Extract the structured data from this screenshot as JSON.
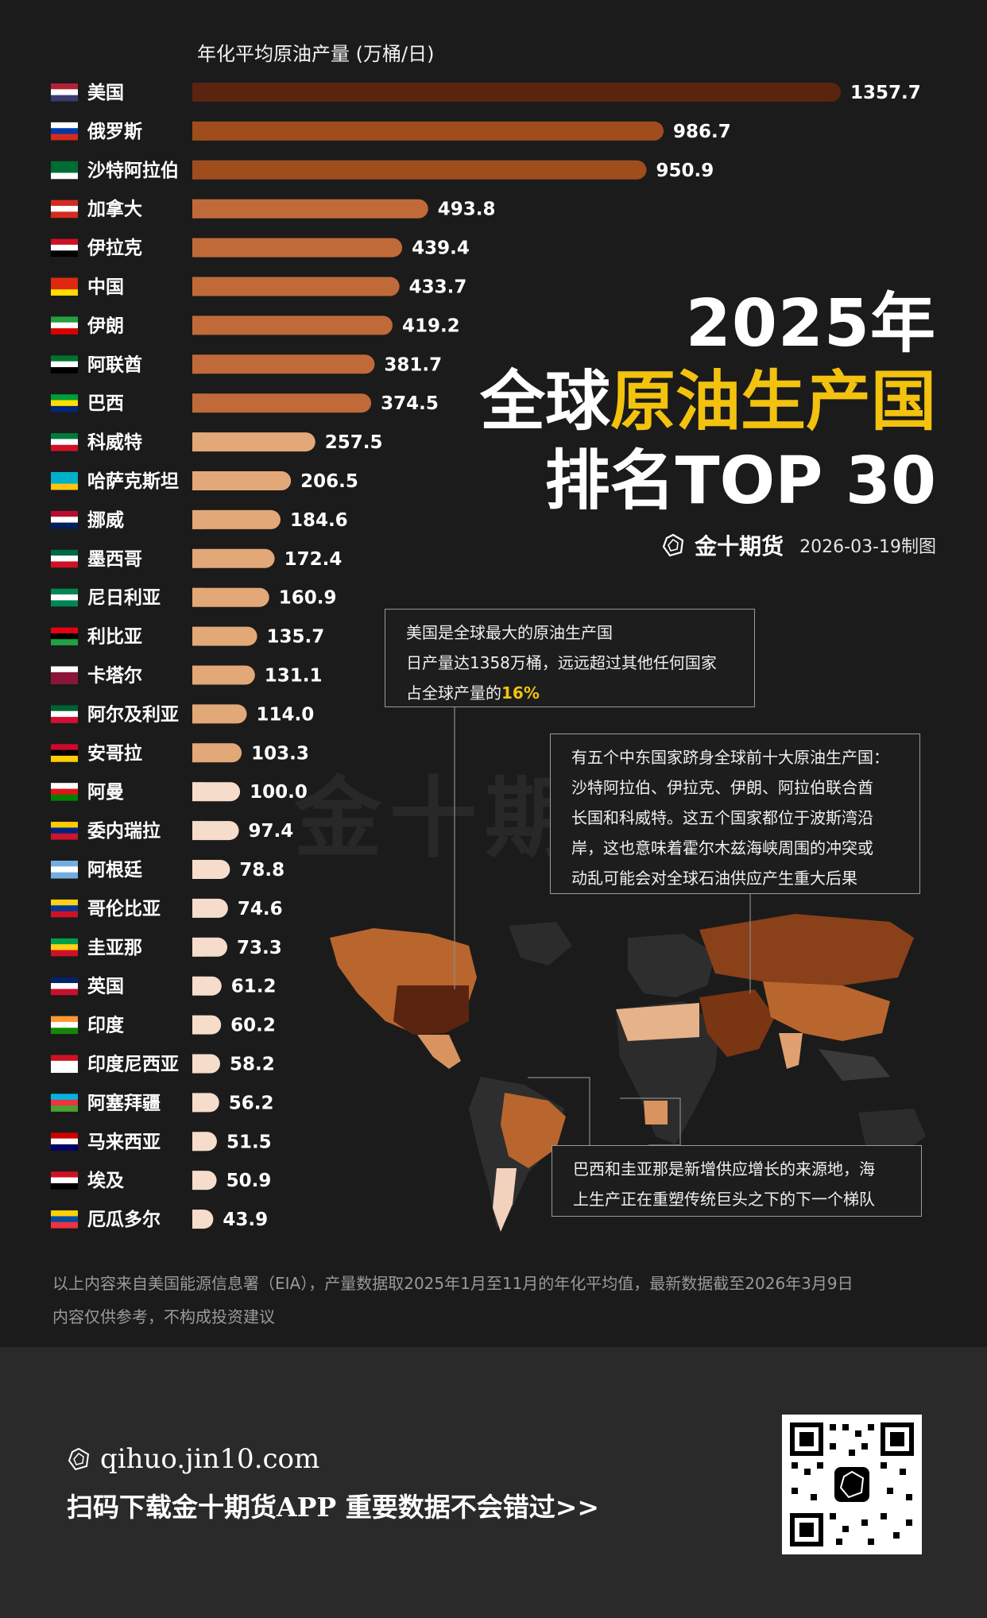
{
  "unit_label": "年化平均原油产量 (万桶/日)",
  "title": {
    "year": "2025年",
    "prefix": "全球",
    "highlight": "原油生产国",
    "line3": "排名TOP 30"
  },
  "brand": {
    "name": "金十期货",
    "date": "2026-03-19制图"
  },
  "watermark": "金十期货",
  "notes": {
    "usa": [
      "美国是全球最大的原油生产国",
      "日产量达1358万桶，远远超过其他任何国家",
      "占全球产量的",
      "16%"
    ],
    "mideast": [
      "有五个中东国家跻身全球前十大原油生产国：",
      "沙特阿拉伯、伊拉克、伊朗、阿拉伯联合酋",
      "长国和科威特。这五个国家都位于波斯湾沿",
      "岸，这也意味着霍尔木兹海峡周围的冲突或",
      "动乱可能会对全球石油供应产生重大后果"
    ],
    "brazil": [
      "巴西和圭亚那是新增供应增长的来源地，海",
      "上生产正在重塑传统巨头之下的下一个梯队"
    ]
  },
  "source": [
    "以上内容来自美国能源信息署（EIA），产量数据取2025年1月至11月的年化平均值，最新数据截至2026年3月9日",
    "内容仅供参考，不构成投资建议"
  ],
  "footer": {
    "url": "qihuo.jin10.com",
    "slogan": "扫码下载金十期货APP 重要数据不会错过>>"
  },
  "colors": {
    "top": "#5a2410",
    "mid": "#c06a3a",
    "low": "#e3a878",
    "lowest": "#f6dccb",
    "accent": "#f3c20f"
  },
  "chart_data": {
    "type": "bar",
    "orientation": "horizontal",
    "categories": [
      "美国",
      "俄罗斯",
      "沙特阿拉伯",
      "加拿大",
      "伊拉克",
      "中国",
      "伊朗",
      "阿联酋",
      "巴西",
      "科威特",
      "哈萨克斯坦",
      "挪威",
      "墨西哥",
      "尼日利亚",
      "利比亚",
      "卡塔尔",
      "阿尔及利亚",
      "安哥拉",
      "阿曼",
      "委内瑞拉",
      "阿根廷",
      "哥伦比亚",
      "圭亚那",
      "英国",
      "印度",
      "印度尼西亚",
      "阿塞拜疆",
      "马来西亚",
      "埃及",
      "厄瓜多尔"
    ],
    "values": [
      1357.7,
      986.7,
      950.9,
      493.8,
      439.4,
      433.7,
      419.2,
      381.7,
      374.5,
      257.5,
      206.5,
      184.6,
      172.4,
      160.9,
      135.7,
      131.1,
      114.0,
      103.3,
      100.0,
      97.4,
      78.8,
      74.6,
      73.3,
      61.2,
      60.2,
      58.2,
      56.2,
      51.5,
      50.9,
      43.9
    ],
    "labels": [
      "1357.7",
      "986.7",
      "950.9",
      "493.8",
      "439.4",
      "433.7",
      "419.2",
      "381.7",
      "374.5",
      "257.5",
      "206.5",
      "184.6",
      "172.4",
      "160.9",
      "135.7",
      "131.1",
      "114.0",
      "103.3",
      "100.0",
      "97.4",
      "78.8",
      "74.6",
      "73.3",
      "61.2",
      "60.2",
      "58.2",
      "56.2",
      "51.5",
      "50.9",
      "43.9"
    ],
    "xlim": [
      0,
      1357.7
    ]
  }
}
